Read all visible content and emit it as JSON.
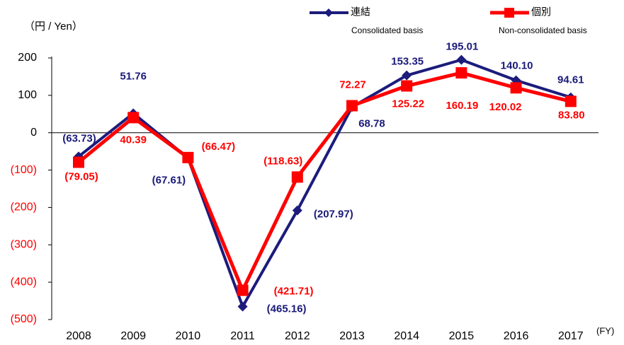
{
  "chart_data": {
    "type": "line",
    "unit_label": "（円 / Yen）",
    "x_label": "(FY)",
    "categories": [
      "2008",
      "2009",
      "2010",
      "2011",
      "2012",
      "2013",
      "2014",
      "2015",
      "2016",
      "2017"
    ],
    "series": [
      {
        "name": "連結",
        "subname": "Consolidated basis",
        "color": "#1c1c7c",
        "marker": "diamond",
        "values": [
          -63.73,
          51.76,
          -67.61,
          -465.16,
          -207.97,
          68.78,
          153.35,
          195.01,
          140.1,
          94.61
        ],
        "value_labels": [
          "(63.73)",
          "51.76",
          "(67.61)",
          "(465.16)",
          "(207.97)",
          "68.78",
          "153.35",
          "195.01",
          "140.10",
          "94.61"
        ]
      },
      {
        "name": "個別",
        "subname": "Non-consolidated basis",
        "color": "#ff0000",
        "marker": "square",
        "values": [
          -79.05,
          40.39,
          -66.47,
          -421.71,
          -118.63,
          72.27,
          125.22,
          160.19,
          120.02,
          83.8
        ],
        "value_labels": [
          "(79.05)",
          "40.39",
          "(66.47)",
          "(421.71)",
          "(118.63)",
          "72.27",
          "125.22",
          "160.19",
          "120.02",
          "83.80"
        ]
      }
    ],
    "ylim": [
      -500,
      200
    ],
    "yticks": [
      200,
      100,
      0,
      {
        "value": -100,
        "label": "(100)"
      },
      {
        "value": -200,
        "label": "(200)"
      },
      {
        "value": -300,
        "label": "(300)"
      },
      {
        "value": -400,
        "label": "(400)"
      },
      {
        "value": -500,
        "label": "(500)"
      }
    ],
    "negative_tick_color": "#ff0000",
    "grid": false
  }
}
